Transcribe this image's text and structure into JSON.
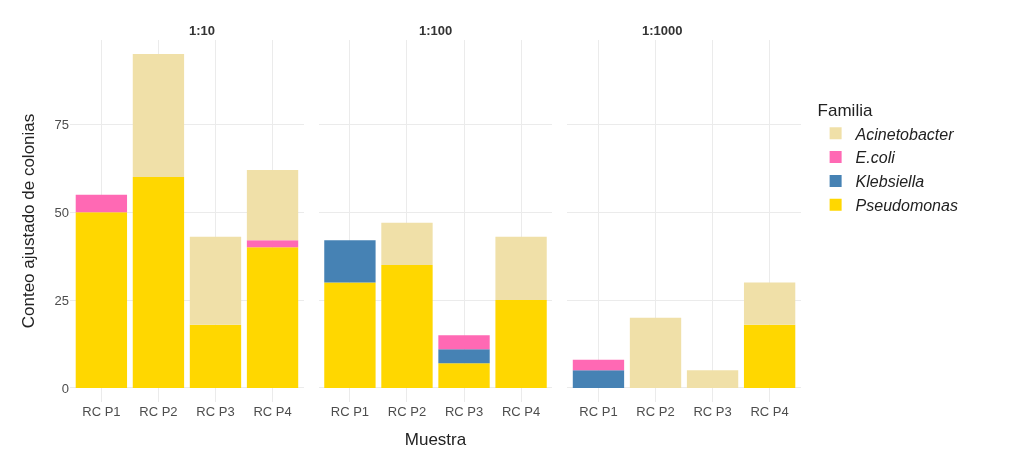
{
  "chart_data": [
    {
      "type": "bar",
      "title": "1:10",
      "ylabel": "Conteo ajustado de colonias",
      "categories": [
        "RC P1",
        "RC P2",
        "RC P3",
        "RC P4"
      ],
      "stacked": true,
      "ylim": [
        -4,
        99
      ],
      "yticks": [
        0,
        25,
        50,
        75
      ],
      "grid": true,
      "legend": "right",
      "legend_title": "Familia",
      "series": [
        {
          "name": "Pseudomonas",
          "color": "#ffd700",
          "values": [
            50,
            60,
            18,
            40
          ]
        },
        {
          "name": "Klebsiella",
          "color": "#4682b4",
          "values": [
            0,
            0,
            0,
            0
          ]
        },
        {
          "name": "E.coli",
          "color": "#ff69b4",
          "values": [
            5,
            0,
            0,
            2
          ]
        },
        {
          "name": "Acinetobacter",
          "color": "#f0e0a8",
          "values": [
            0,
            35,
            25,
            20
          ]
        }
      ]
    },
    {
      "type": "bar",
      "title": "1:100",
      "xlabel": "Muestra",
      "categories": [
        "RC P1",
        "RC P2",
        "RC P3",
        "RC P4"
      ],
      "stacked": true,
      "ylim": [
        -4,
        99
      ],
      "yticks": [
        0,
        25,
        50,
        75
      ],
      "grid": true,
      "tick_labels": "x",
      "series": [
        {
          "color": "#ffd700",
          "values": [
            30,
            35,
            7,
            25
          ]
        },
        {
          "color": "#4682b4",
          "values": [
            12,
            0,
            4,
            0
          ]
        },
        {
          "color": "#ff69b4",
          "values": [
            0,
            0,
            4,
            0
          ]
        },
        {
          "color": "#f0e0a8",
          "values": [
            0,
            12,
            0,
            18
          ]
        }
      ]
    },
    {
      "type": "bar",
      "title": "1:1000",
      "categories": [
        "RC P1",
        "RC P2",
        "RC P3",
        "RC P4"
      ],
      "stacked": true,
      "ylim": [
        -4,
        99
      ],
      "yticks": [
        0,
        25,
        50,
        75
      ],
      "grid": true,
      "tick_labels": "x",
      "series": [
        {
          "color": "#ffd700",
          "values": [
            0,
            0,
            0,
            18
          ]
        },
        {
          "color": "#4682b4",
          "values": [
            5,
            0,
            0,
            0
          ]
        },
        {
          "color": "#ff69b4",
          "values": [
            3,
            0,
            0,
            0
          ]
        },
        {
          "color": "#f0e0a8",
          "values": [
            0,
            20,
            5,
            12
          ]
        }
      ]
    }
  ]
}
